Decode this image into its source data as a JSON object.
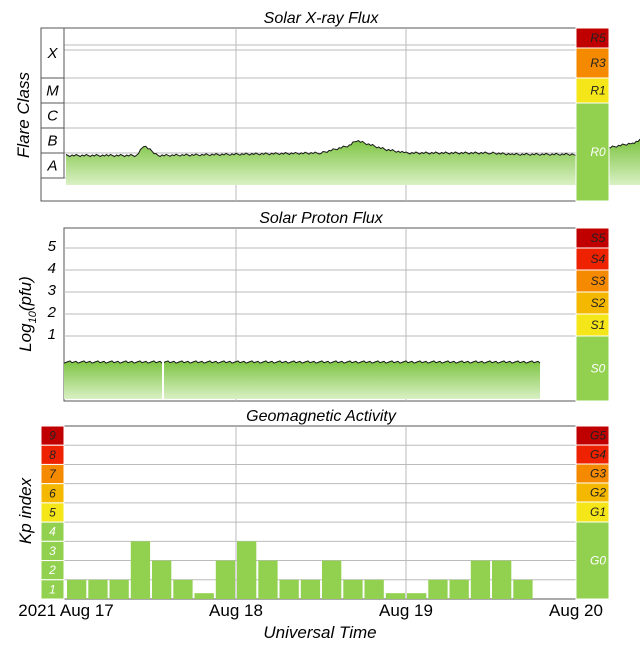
{
  "colors": {
    "green": "#92d050",
    "yellow": "#f5e61a",
    "amber": "#f5b800",
    "orange": "#f58a00",
    "red": "#ee2200",
    "darkred": "#c00000"
  },
  "xray": {
    "title": "Solar X-ray Flux",
    "ylabel": "Flare Class",
    "classes": [
      "X",
      "M",
      "C",
      "B",
      "A"
    ],
    "scales": [
      {
        "label": "R5",
        "color": "#c00000"
      },
      {
        "label": "R3",
        "color": "#f58a00"
      },
      {
        "label": "R1",
        "color": "#f5e61a"
      },
      {
        "label": "R0",
        "color": "#92d050"
      }
    ]
  },
  "proton": {
    "title": "Solar Proton Flux",
    "ylabel_main": "Log",
    "ylabel_sub": "10",
    "ylabel_rest": "(pfu)",
    "ticks": [
      "5",
      "4",
      "3",
      "2",
      "1"
    ],
    "scales": [
      {
        "label": "S5",
        "color": "#c00000"
      },
      {
        "label": "S4",
        "color": "#ee2200"
      },
      {
        "label": "S3",
        "color": "#f58a00"
      },
      {
        "label": "S2",
        "color": "#f5b800"
      },
      {
        "label": "S1",
        "color": "#f5e61a"
      },
      {
        "label": "S0",
        "color": "#92d050"
      }
    ]
  },
  "geo": {
    "title": "Geomagnetic Activity",
    "ylabel": "Kp index",
    "kp_levels": [
      {
        "label": "9",
        "color": "#c00000"
      },
      {
        "label": "8",
        "color": "#ee2200"
      },
      {
        "label": "7",
        "color": "#f58a00"
      },
      {
        "label": "6",
        "color": "#f5b800"
      },
      {
        "label": "5",
        "color": "#f5e61a"
      },
      {
        "label": "4",
        "color": "#92d050"
      },
      {
        "label": "3",
        "color": "#92d050"
      },
      {
        "label": "2",
        "color": "#92d050"
      },
      {
        "label": "1",
        "color": "#92d050"
      }
    ],
    "scales": [
      {
        "label": "G5",
        "color": "#c00000"
      },
      {
        "label": "G4",
        "color": "#ee2200"
      },
      {
        "label": "G3",
        "color": "#f58a00"
      },
      {
        "label": "G2",
        "color": "#f5b800"
      },
      {
        "label": "G1",
        "color": "#f5e61a"
      },
      {
        "label": "G0",
        "color": "#92d050"
      }
    ]
  },
  "xaxis": {
    "labels": [
      "2021 Aug 17",
      "Aug 18",
      "Aug 19",
      "Aug 20"
    ],
    "title": "Universal Time"
  },
  "chart_data": [
    {
      "type": "area",
      "title": "Solar X-ray Flux",
      "ylabel": "Flare Class",
      "y_classes": [
        "A",
        "B",
        "C",
        "M",
        "X"
      ],
      "xlim_days": [
        "2021-08-17",
        "2021-08-20"
      ],
      "series": [
        {
          "x_hours": [
            0,
            6,
            10,
            11,
            13,
            24,
            36,
            40,
            41,
            45,
            48,
            60,
            63,
            72,
            80,
            81,
            82,
            83,
            84
          ],
          "flux_class_level": [
            1.1,
            1.1,
            1.1,
            1.5,
            1.1,
            1.15,
            1.2,
            1.5,
            1.7,
            1.35,
            1.2,
            1.2,
            1.15,
            1.15,
            1.6,
            1.7,
            1.4,
            1.2,
            1.2
          ]
        }
      ]
    },
    {
      "type": "area",
      "title": "Solar Proton Flux",
      "ylabel": "Log10(pfu)",
      "yticks": [
        1,
        2,
        3,
        4,
        5
      ],
      "series": [
        {
          "x_hours": [
            0,
            84
          ],
          "log10_pfu": [
            -0.3,
            -0.3
          ],
          "gap_at_hours": [
            14
          ]
        }
      ]
    },
    {
      "type": "bar",
      "title": "Geomagnetic Activity",
      "ylabel": "Kp index",
      "xlabel": "Universal Time",
      "bar_hours": 3,
      "values": [
        1,
        1,
        1,
        3,
        2,
        1,
        0.3,
        2,
        3,
        2,
        1,
        1,
        2,
        1,
        1,
        0.3,
        0.3,
        1,
        1,
        2,
        2,
        1
      ],
      "ylim": [
        0,
        9
      ]
    }
  ]
}
